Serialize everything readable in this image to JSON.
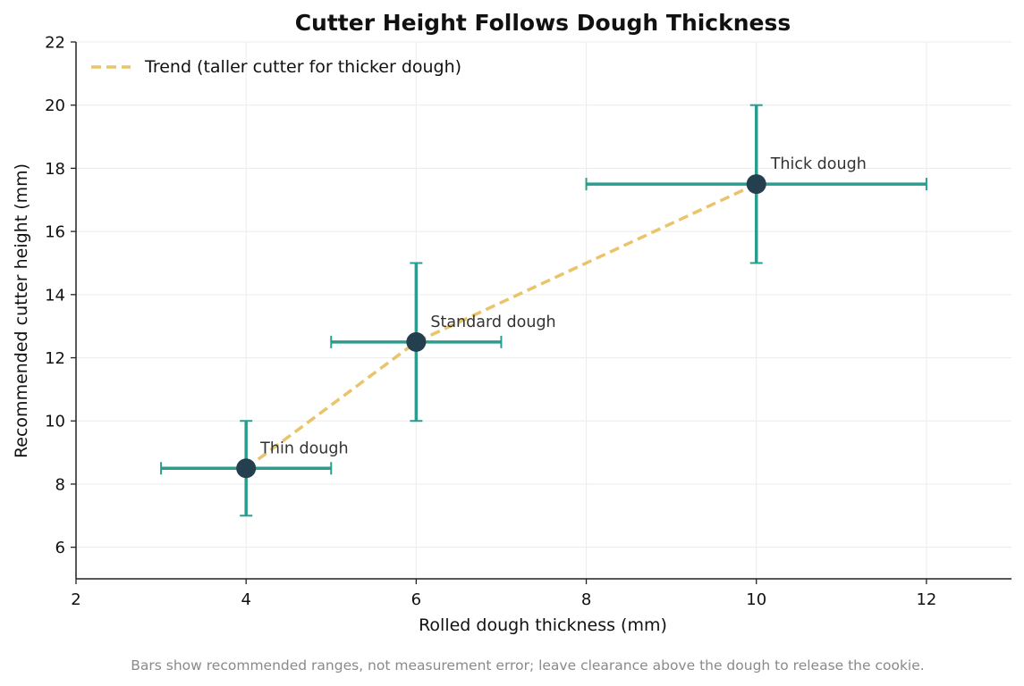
{
  "chart_data": {
    "type": "scatter",
    "title": "Cutter Height Follows Dough Thickness",
    "xlabel": "Rolled dough thickness (mm)",
    "ylabel": "Recommended cutter height (mm)",
    "xlim": [
      2,
      13
    ],
    "ylim": [
      5,
      22
    ],
    "xticks": [
      2,
      4,
      6,
      8,
      10,
      12
    ],
    "yticks": [
      6,
      8,
      10,
      12,
      14,
      16,
      18,
      20,
      22
    ],
    "grid": true,
    "legend_position": "top-left",
    "points": [
      {
        "label": "Thin dough",
        "x": 4,
        "y": 8.5,
        "x_range": [
          3,
          5
        ],
        "y_range": [
          7,
          10
        ]
      },
      {
        "label": "Standard dough",
        "x": 6,
        "y": 12.5,
        "x_range": [
          5,
          7
        ],
        "y_range": [
          10,
          15
        ]
      },
      {
        "label": "Thick dough",
        "x": 10,
        "y": 17.5,
        "x_range": [
          8,
          12
        ],
        "y_range": [
          15,
          20
        ]
      }
    ],
    "trend": {
      "name": "Trend (taller cutter for thicker dough)",
      "style": "dashed",
      "x": [
        4,
        6,
        10
      ],
      "y": [
        8.5,
        12.5,
        17.5
      ]
    },
    "footnote": "Bars show recommended ranges, not measurement error; leave clearance above the dough to release the cookie.",
    "colors": {
      "point": "#243f4d",
      "error_bar": "#2a9d8f",
      "trend": "#e9c46a",
      "grid": "#ececec",
      "axis": "#222222"
    }
  }
}
